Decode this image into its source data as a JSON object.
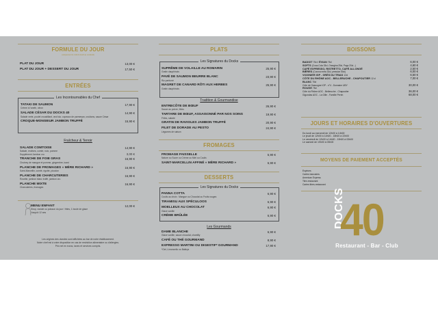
{
  "left": {
    "formule": {
      "title": "FORMULE DU JOUR",
      "subtitle": "(uniquement le midi du lundi au vendredi)",
      "items": [
        {
          "name": "PLAT DU JOUR",
          "price": "13,00 €"
        },
        {
          "name": "PLAT DU JOUR + DESSERT DU JOUR",
          "price": "17,50 €"
        }
      ]
    },
    "entrees": {
      "title": "ENTRÉES",
      "box_title": "Les Incontournables du Chef",
      "box_items": [
        {
          "name": "TATAKI DE SAUMON",
          "price": "17,90 €",
          "desc": "Crème à l'aneth, citron"
        },
        {
          "name": "SALADE CÉSAR DU DOCKS 40",
          "price": "14,90 €",
          "desc": "Salade verte, poulet croustillant, œuf dur, copeaux de parmesan, croûtons, sauce César"
        },
        {
          "name": "CROQUE-MONSIEUR JAMBON TRUFFÉ",
          "price": "15,90 €"
        }
      ],
      "sub_title": "Fraîcheur & Terroir",
      "sub_items": [
        {
          "name": "SALADE COMTOISE",
          "price": "14,90 €",
          "desc": "Salade, endives, comté, noix, pomme",
          "extra": "Supplément Jambon cru",
          "extra_price": "3,00 €"
        },
        {
          "name": "TRANCHE DE FOIE GRAS",
          "price": "16,90 €",
          "desc": "Chutney de mangue et pomme, gingembre, toast"
        },
        {
          "name": "PLANCHE DE FROMAGES « MÈRE RICHARD »",
          "price": "16,90 €",
          "desc": "Saint-Marcellin, comté, rigotte, picodon"
        },
        {
          "name": "PLANCHE DE CHARCUTERIES",
          "price": "16,90 €",
          "desc": "Rosette, jambon blanc truffé, jambon cru"
        },
        {
          "name": "PLANCHE MIXTE",
          "price": "16,90 €",
          "desc": "Charcuteries, fromages"
        }
      ]
    },
    "enfant": {
      "name": "MENU ENFANT",
      "price": "12,00 €",
      "desc": "Sirop, viande ou poisson du jour / frites, 1 boule de glace",
      "age": "Jusqu'à 12 ans"
    },
    "footer": [
      "Les origines des viandes sont affichées au bar de notre établissement.",
      "Notre chef est à votre disposition en cas de restriction alimentaire ou d'allergies.",
      "Prix net en euros, taxes et services compris."
    ]
  },
  "middle": {
    "plats": {
      "title": "PLATS",
      "box_title": "Les Signatures du Docks",
      "box_items": [
        {
          "name": "SUPRÊME DE VOLAILLE AU ROMARIN",
          "price": "25,90 €",
          "desc": "Gratin dauphinois"
        },
        {
          "name": "PAVÉ DE SAUMON BEURRE BLANC",
          "price": "23,90 €",
          "desc": "Riz parfumé"
        },
        {
          "name": "MAGRET DE CANARD RÔTI AUX HERBES",
          "price": "25,90 €",
          "desc": "Gratin dauphinois"
        }
      ],
      "sub_title": "Tradition & Gourmandise",
      "sub_items": [
        {
          "name": "ENTRECÔTE DE BŒUF",
          "price": "26,90 €",
          "desc": "Sauce au poivre, frites"
        },
        {
          "name": "TARTARE DE BŒUF, ASSAISONNÉ PAR NOS SOINS",
          "price": "19,90 €",
          "desc": "Frites, salade"
        },
        {
          "name": "GRATIN DE RAVIOLES JAMBON TRUFFÉ",
          "price": "20,90 €"
        },
        {
          "name": "FILET DE DORADE AU PESTO",
          "price": "24,90 €",
          "desc": "Légumes de saison"
        }
      ]
    },
    "fromages": {
      "title": "FROMAGES",
      "items": [
        {
          "name": "FROMAGE FAISSELLE",
          "price": "5,90 €",
          "desc": "Nature ou Sucre ou Crème ou Miel ou Coulis"
        },
        {
          "name": "SAINT-MARCELLIN AFFINÉ « MÈRE RICHARD »",
          "price": "6,90 €"
        }
      ]
    },
    "desserts": {
      "title": "DESSERTS",
      "box_title": "Les Signatures du Docks",
      "box_items": [
        {
          "name": "PANNA COTTA",
          "price": "6,90 €",
          "desc": "Coulis au choix : Mangue ou Chocolat ou Fruits rouges"
        },
        {
          "name": "TIRAMISU AUX SPÉCULOOS",
          "price": "6,90 €"
        },
        {
          "name": "MOELLEUX AU CHOCOLAT",
          "price": "6,90 €",
          "desc": "Glace vanille"
        },
        {
          "name": "CRÈME BRÛLÉE",
          "price": "6,90 €"
        }
      ],
      "sub_title": "Les Gourmands",
      "sub_items": [
        {
          "name": "DAME BLANCHE",
          "price": "6,90 €",
          "desc": "Glace vanille, sauce chocolat, chantilly"
        },
        {
          "name": "CAFÉ OU THÉ GOURMAND",
          "price": "8,90 €"
        },
        {
          "name": "EXPRESSO MARTINI OU DIGESTIF* GOURMAND",
          "price": "17,90 €",
          "desc": "*Get, Limoncello ou Baileys"
        }
      ]
    }
  },
  "right": {
    "boissons": {
      "title": "BOISSONS",
      "items": [
        {
          "name": "BADOIT",
          "note": "75cl / ",
          "name2": "ÉVIAN",
          "note2": "75cl",
          "price": "6,00 €"
        },
        {
          "name": "SOFTS",
          "note": "(Coca-Cola 33cl, Orangina 25cl, Pago 20cl...)",
          "price": "4,60 €"
        },
        {
          "name": "CAFÉ EXPRESSO, RISTRETTO, CAFÉ ALLONGÉ",
          "price": "2,50 €"
        },
        {
          "name": "BIÈRES",
          "note": "(Corona extra 33cl, pression 50cl)",
          "price": "6,00 €"
        },
        {
          "name": "VIOGNIER IGP - GRÈS DU TRIAS",
          "note": "12cl",
          "price": "6,50 €"
        },
        {
          "name": "CÔTE DU RHÔNE AOC - BELLERUCHE - CHAPOUTIER",
          "note": "12 cl",
          "price": "7,00 €"
        },
        {
          "name": "BLANC",
          "note": "75cl"
        },
        {
          "desc": "Côte de Gascogne IGP - n°4 - Domaine UBY",
          "price": "30,00 €"
        },
        {
          "name": "ROUGE",
          "note": "75cl"
        },
        {
          "desc": "Côte du Rhône AOC - Belleruche - Chapoutier",
          "price": "36,00 €"
        },
        {
          "desc": "Gigondas AOC - La Gille - Famille Perrin",
          "price": "68,00 €"
        }
      ]
    },
    "horaires": {
      "title": "JOURS ET HORAIRES D'OUVERTURES",
      "lines": [
        "Du lundi au mercredi de 12h00 à 14h00",
        "Le jeudi de 12h00 à 14h00 - 18h00 à 22h00",
        "Le vendredi de 12h00 à 14h00 - 19h00 à 03h00",
        "Le samedi de 19h00 à 03h00"
      ]
    },
    "paiement": {
      "title": "MOYENS DE PAIEMENT ACCEPTÉS",
      "lines": [
        "Espèces",
        "Cartes bancaires",
        "American Express",
        "Titre-restaurant",
        "Cartes titres-restaurant"
      ]
    },
    "logo": {
      "word": "DOCKS",
      "number": "40",
      "tagline": "Restaurant - Bar - Club"
    }
  },
  "colors": {
    "background": "#bdbfc0",
    "gold": "#a98f3e",
    "text": "#1c1c1c"
  }
}
